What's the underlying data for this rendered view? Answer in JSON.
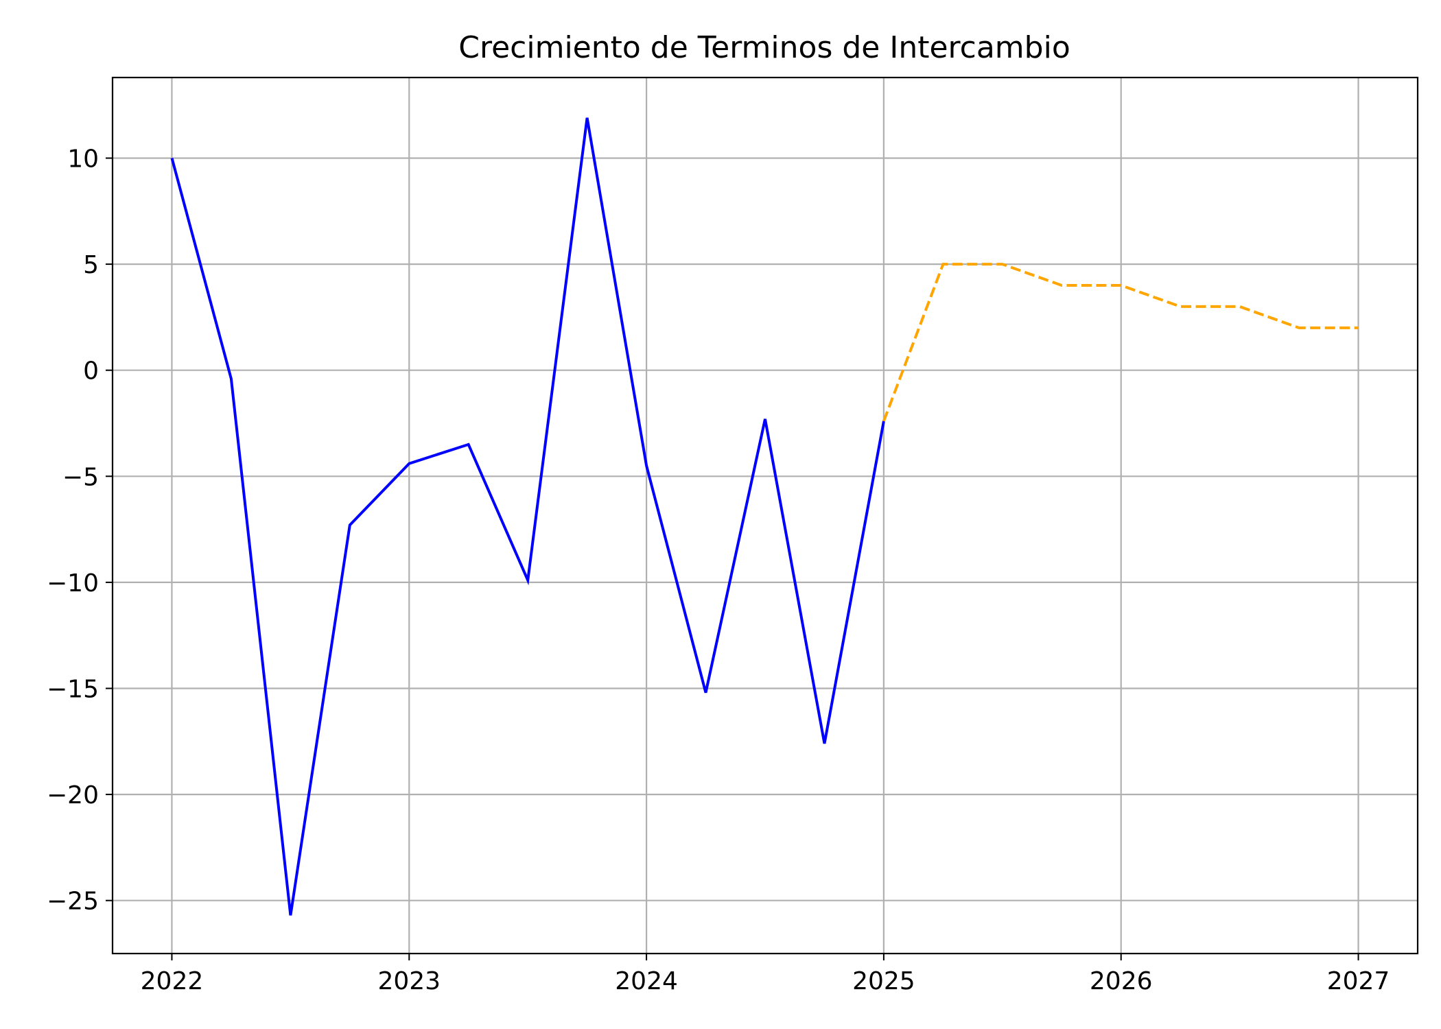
{
  "chart_data": {
    "type": "line",
    "title": "Crecimiento de Terminos de Intercambio",
    "xlabel": "",
    "ylabel": "",
    "xlim": [
      2021.75,
      2027.25
    ],
    "ylim": [
      -27.5,
      13.8
    ],
    "x_ticks": [
      2022,
      2023,
      2024,
      2025,
      2026,
      2027
    ],
    "x_tick_labels": [
      "2022",
      "2023",
      "2024",
      "2025",
      "2026",
      "2027"
    ],
    "y_ticks": [
      -25,
      -20,
      -15,
      -10,
      -5,
      0,
      5,
      10
    ],
    "y_tick_labels": [
      "−25",
      "−20",
      "−15",
      "−10",
      "−5",
      "0",
      "5",
      "10"
    ],
    "grid": true,
    "series": [
      {
        "style": "solid",
        "color": "#0000ff",
        "x": [
          2022.0,
          2022.25,
          2022.5,
          2022.75,
          2023.0,
          2023.25,
          2023.5,
          2023.75,
          2024.0,
          2024.25,
          2024.5,
          2024.75,
          2025.0
        ],
        "y": [
          10.0,
          -0.4,
          -25.7,
          -7.3,
          -4.4,
          -3.5,
          -9.9,
          11.9,
          -4.5,
          -15.2,
          -2.3,
          -17.6,
          -2.4
        ]
      },
      {
        "style": "dashed",
        "color": "#ffa500",
        "x": [
          2025.0,
          2025.25,
          2025.5,
          2025.75,
          2026.0,
          2026.25,
          2026.5,
          2026.75,
          2027.0
        ],
        "y": [
          -2.4,
          5.0,
          5.0,
          4.0,
          4.0,
          3.0,
          3.0,
          2.0,
          2.0
        ]
      }
    ]
  }
}
